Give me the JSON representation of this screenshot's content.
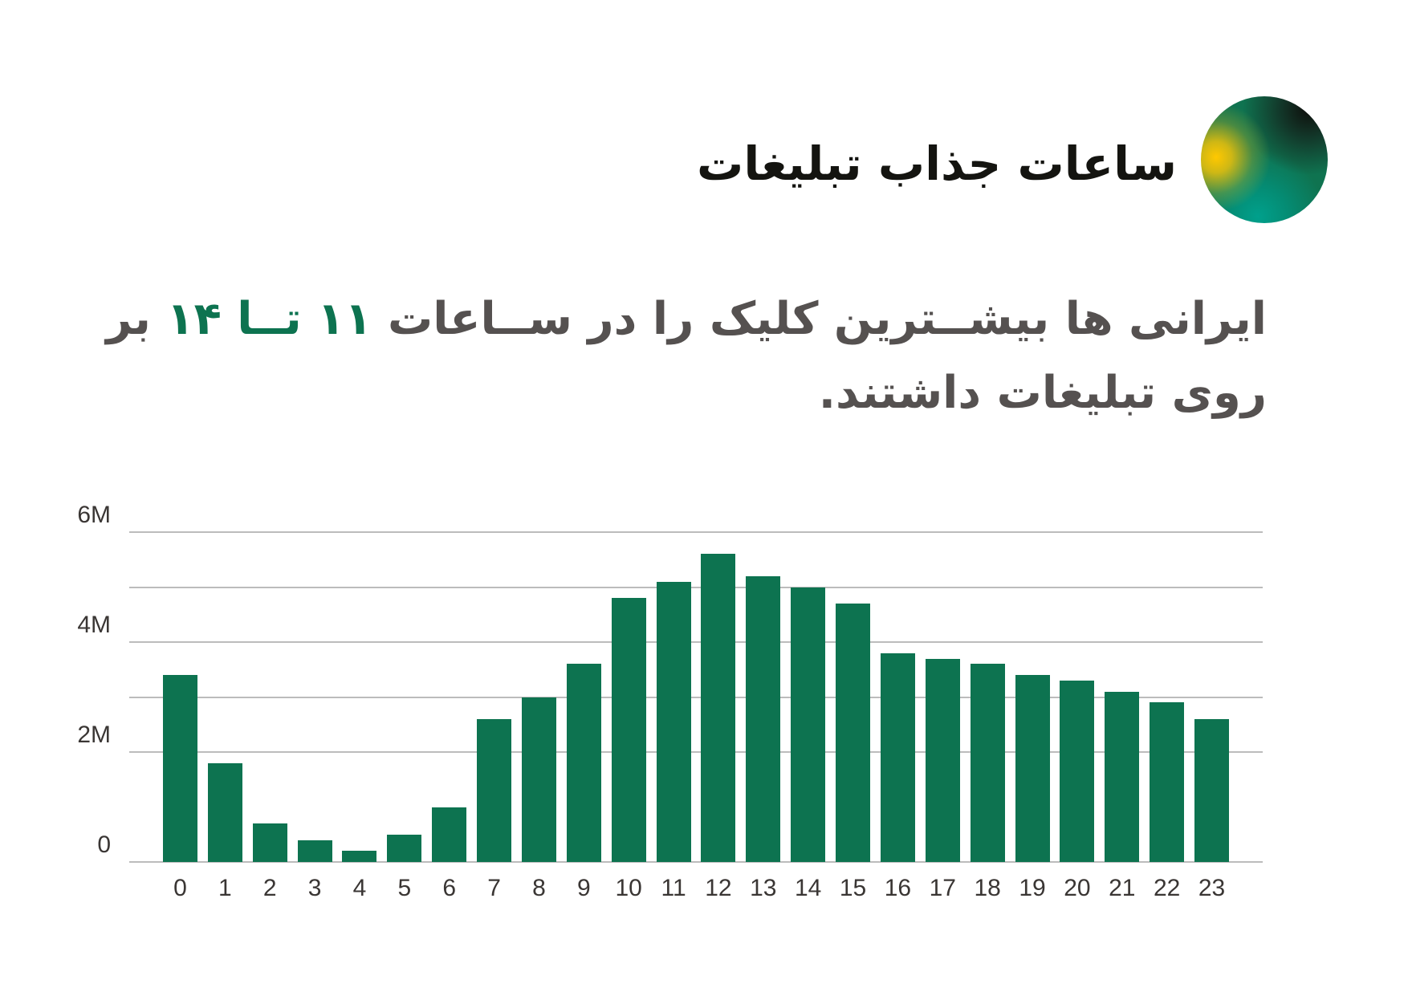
{
  "header": {
    "title": "ساعات جذاب تبلیغات",
    "badge": "gradient-circle"
  },
  "subtitle": {
    "part1": "ایرانی ها بیشــترین کلیک را در ســاعات ",
    "highlight_from": "۱۱",
    "highlight_sep": " تــا ",
    "highlight_to": "۱۴",
    "part2": " بر روی تبلیغات داشتند."
  },
  "colors": {
    "bar": "#0d7350",
    "title": "#141410",
    "subtitle": "#555150",
    "highlight": "#0d7350",
    "grid": "#bcbcbc"
  },
  "chart_data": {
    "type": "bar",
    "title": "",
    "xlabel": "",
    "ylabel": "",
    "categories": [
      "0",
      "1",
      "2",
      "3",
      "4",
      "5",
      "6",
      "7",
      "8",
      "9",
      "10",
      "11",
      "12",
      "13",
      "14",
      "15",
      "16",
      "17",
      "18",
      "19",
      "20",
      "21",
      "22",
      "23"
    ],
    "values": [
      3.4,
      1.8,
      0.7,
      0.4,
      0.2,
      0.5,
      1.0,
      2.6,
      3.0,
      3.6,
      4.8,
      5.1,
      5.6,
      5.2,
      5.0,
      4.7,
      3.8,
      3.7,
      3.6,
      3.4,
      3.3,
      3.1,
      2.9,
      2.6
    ],
    "unit": "M",
    "ylim": [
      0,
      6
    ],
    "yticks": [
      "0",
      "2M",
      "4M",
      "6M"
    ],
    "gridlines": [
      2,
      3,
      4,
      5,
      6
    ],
    "grid": true,
    "legend": null
  }
}
